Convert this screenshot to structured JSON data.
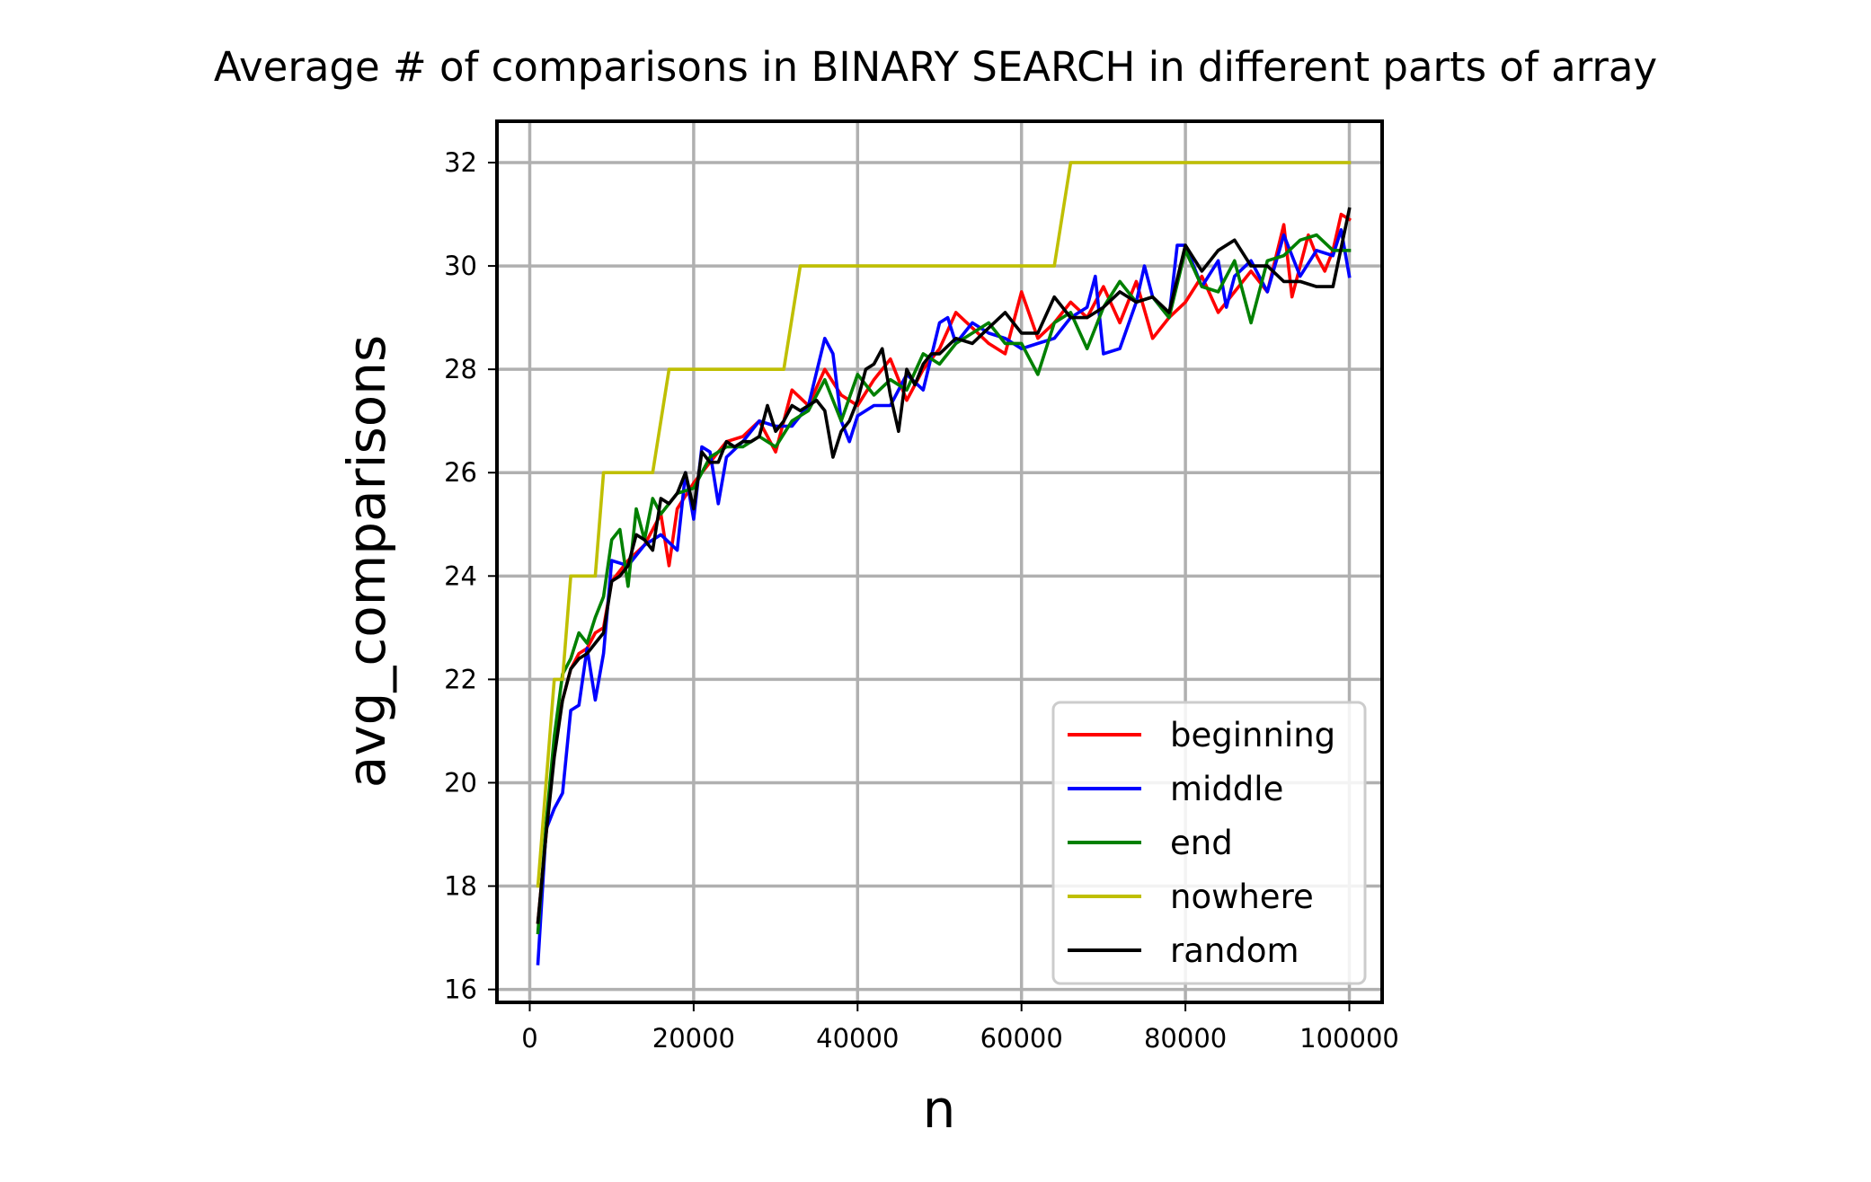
{
  "chart_data": {
    "type": "line",
    "title": "Average # of comparisons in BINARY SEARCH in different parts of array",
    "xlabel": "n",
    "ylabel": "avg_comparisons",
    "xlim": [
      -4000,
      104000
    ],
    "ylim": [
      15.75,
      32.8
    ],
    "xticks": [
      0,
      20000,
      40000,
      60000,
      80000,
      100000
    ],
    "xtick_labels": [
      "0",
      "20000",
      "40000",
      "60000",
      "80000",
      "100000"
    ],
    "yticks": [
      16,
      18,
      20,
      22,
      24,
      26,
      28,
      30,
      32
    ],
    "ytick_labels": [
      "16",
      "18",
      "20",
      "22",
      "24",
      "26",
      "28",
      "30",
      "32"
    ],
    "grid": true,
    "legend_position": "lower-right",
    "series": [
      {
        "name": "beginning",
        "color": "#ff0000",
        "x": [
          1000,
          2000,
          3000,
          4000,
          5000,
          6000,
          7000,
          8000,
          9000,
          10000,
          12000,
          14000,
          16000,
          17000,
          18000,
          20000,
          22000,
          24000,
          26000,
          28000,
          30000,
          32000,
          34000,
          36000,
          38000,
          40000,
          42000,
          44000,
          46000,
          48000,
          50000,
          52000,
          54000,
          56000,
          58000,
          60000,
          62000,
          64000,
          66000,
          68000,
          70000,
          72000,
          74000,
          76000,
          78000,
          80000,
          82000,
          84000,
          86000,
          88000,
          90000,
          92000,
          93000,
          94000,
          95000,
          96000,
          97000,
          98000,
          99000,
          100000
        ],
        "y": [
          17.3,
          19.0,
          20.8,
          21.6,
          22.2,
          22.5,
          22.6,
          22.9,
          23.0,
          23.9,
          24.3,
          24.6,
          25.2,
          24.2,
          25.3,
          25.8,
          26.2,
          26.6,
          26.7,
          27.0,
          26.4,
          27.6,
          27.3,
          28.0,
          27.5,
          27.3,
          27.8,
          28.2,
          27.4,
          28.0,
          28.4,
          29.1,
          28.8,
          28.5,
          28.3,
          29.5,
          28.6,
          28.9,
          29.3,
          29.0,
          29.6,
          28.9,
          29.7,
          28.6,
          29.0,
          29.3,
          29.8,
          29.1,
          29.5,
          29.9,
          29.5,
          30.8,
          29.4,
          30.0,
          30.6,
          30.2,
          29.9,
          30.3,
          31.0,
          30.9
        ]
      },
      {
        "name": "middle",
        "color": "#0000ff",
        "x": [
          1000,
          2000,
          3000,
          4000,
          5000,
          6000,
          7000,
          8000,
          9000,
          10000,
          12000,
          14000,
          16000,
          18000,
          19000,
          20000,
          21000,
          22000,
          23000,
          24000,
          26000,
          28000,
          30000,
          32000,
          34000,
          36000,
          37000,
          38000,
          39000,
          40000,
          42000,
          44000,
          46000,
          48000,
          50000,
          51000,
          52000,
          54000,
          56000,
          58000,
          60000,
          62000,
          64000,
          66000,
          68000,
          69000,
          70000,
          72000,
          74000,
          75000,
          76000,
          78000,
          79000,
          80000,
          82000,
          84000,
          85000,
          86000,
          88000,
          90000,
          92000,
          94000,
          96000,
          98000,
          99000,
          100000
        ],
        "y": [
          16.5,
          19.1,
          19.5,
          19.8,
          21.4,
          21.5,
          22.6,
          21.6,
          22.5,
          24.3,
          24.2,
          24.6,
          24.8,
          24.5,
          26.0,
          25.1,
          26.5,
          26.4,
          25.4,
          26.3,
          26.6,
          27.0,
          26.9,
          26.9,
          27.3,
          28.6,
          28.3,
          27.0,
          26.6,
          27.1,
          27.3,
          27.3,
          27.9,
          27.6,
          28.9,
          29.0,
          28.5,
          28.9,
          28.7,
          28.6,
          28.4,
          28.5,
          28.6,
          29.0,
          29.2,
          29.8,
          28.3,
          28.4,
          29.3,
          30.0,
          29.4,
          29.0,
          30.4,
          30.4,
          29.6,
          30.1,
          29.2,
          29.8,
          30.1,
          29.5,
          30.6,
          29.8,
          30.3,
          30.2,
          30.7,
          29.8
        ]
      },
      {
        "name": "end",
        "color": "#008000",
        "x": [
          1000,
          2000,
          3000,
          4000,
          5000,
          6000,
          7000,
          8000,
          9000,
          10000,
          11000,
          12000,
          13000,
          14000,
          15000,
          16000,
          17000,
          18000,
          20000,
          22000,
          24000,
          26000,
          28000,
          30000,
          32000,
          34000,
          36000,
          38000,
          40000,
          42000,
          44000,
          46000,
          48000,
          50000,
          52000,
          54000,
          56000,
          58000,
          60000,
          62000,
          64000,
          66000,
          68000,
          70000,
          72000,
          74000,
          76000,
          78000,
          80000,
          82000,
          84000,
          86000,
          88000,
          90000,
          92000,
          94000,
          96000,
          98000,
          100000
        ],
        "y": [
          17.1,
          19.2,
          20.9,
          22.1,
          22.4,
          22.9,
          22.7,
          23.2,
          23.6,
          24.7,
          24.9,
          23.8,
          25.3,
          24.7,
          25.5,
          25.2,
          25.4,
          25.6,
          25.7,
          26.3,
          26.5,
          26.5,
          26.7,
          26.5,
          27.0,
          27.2,
          27.8,
          27.0,
          27.9,
          27.5,
          27.8,
          27.6,
          28.3,
          28.1,
          28.5,
          28.7,
          28.9,
          28.5,
          28.5,
          27.9,
          28.9,
          29.1,
          28.4,
          29.2,
          29.7,
          29.3,
          29.4,
          29.0,
          30.3,
          29.6,
          29.5,
          30.1,
          28.9,
          30.1,
          30.2,
          30.5,
          30.6,
          30.3,
          30.3
        ]
      },
      {
        "name": "nowhere",
        "color": "#bfbf00",
        "x": [
          1000,
          2000,
          3000,
          4000,
          5000,
          6000,
          7000,
          8000,
          9000,
          15000,
          17000,
          31000,
          33000,
          64000,
          66000,
          100000
        ],
        "y": [
          18.0,
          20.0,
          22.0,
          22.0,
          24.0,
          24.0,
          24.0,
          24.0,
          26.0,
          26.0,
          28.0,
          28.0,
          30.0,
          30.0,
          32.0,
          32.0
        ]
      },
      {
        "name": "random",
        "color": "#000000",
        "x": [
          1000,
          2000,
          3000,
          4000,
          5000,
          6000,
          7000,
          8000,
          9000,
          10000,
          11000,
          12000,
          13000,
          14000,
          15000,
          16000,
          17000,
          18000,
          19000,
          20000,
          21000,
          22000,
          23000,
          24000,
          25000,
          26000,
          27000,
          28000,
          29000,
          30000,
          31000,
          32000,
          33000,
          34000,
          35000,
          36000,
          37000,
          38000,
          39000,
          40000,
          41000,
          42000,
          43000,
          44000,
          45000,
          46000,
          47000,
          48000,
          49000,
          50000,
          52000,
          54000,
          56000,
          58000,
          60000,
          62000,
          64000,
          66000,
          68000,
          70000,
          72000,
          74000,
          76000,
          78000,
          80000,
          82000,
          84000,
          86000,
          88000,
          90000,
          92000,
          94000,
          96000,
          98000,
          100000
        ],
        "y": [
          17.3,
          19.0,
          20.5,
          21.6,
          22.2,
          22.4,
          22.5,
          22.7,
          22.9,
          23.9,
          24.0,
          24.2,
          24.8,
          24.7,
          24.5,
          25.5,
          25.4,
          25.6,
          26.0,
          25.3,
          26.4,
          26.2,
          26.2,
          26.6,
          26.5,
          26.6,
          26.6,
          26.7,
          27.3,
          26.8,
          27.0,
          27.3,
          27.2,
          27.3,
          27.4,
          27.2,
          26.3,
          26.8,
          27.0,
          27.4,
          28.0,
          28.1,
          28.4,
          27.5,
          26.8,
          28.0,
          27.7,
          28.1,
          28.3,
          28.3,
          28.6,
          28.5,
          28.8,
          29.1,
          28.7,
          28.7,
          29.4,
          29.0,
          29.0,
          29.2,
          29.5,
          29.3,
          29.4,
          29.1,
          30.4,
          29.9,
          30.3,
          30.5,
          30.0,
          30.0,
          29.7,
          29.7,
          29.6,
          29.6,
          31.1
        ]
      }
    ]
  }
}
